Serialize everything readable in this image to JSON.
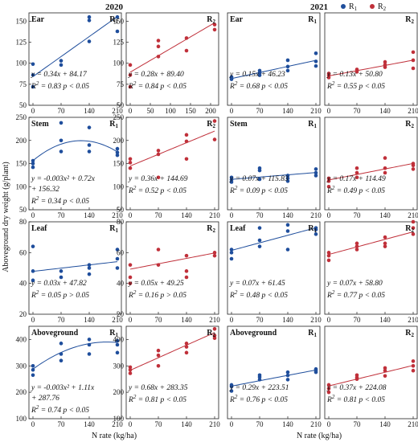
{
  "figure": {
    "years": [
      "2020",
      "2021"
    ],
    "xlabel": "N rate (kg/ha)",
    "ylabel": "Aboveground dry weight  (g/plant)",
    "legend": [
      {
        "label": "R1",
        "color": "#1f4e9c"
      },
      {
        "label": "R2",
        "color": "#c0303a"
      }
    ]
  },
  "chart_data": [
    {
      "type": "scatter",
      "year": "2020",
      "organ": "Ear",
      "tag": "R1",
      "color": "#1f4e9c",
      "xlim": [
        -10,
        220
      ],
      "ylim": [
        50,
        160
      ],
      "yticks": [
        50,
        75,
        100,
        125,
        150
      ],
      "xticks": [
        0,
        70,
        140,
        210
      ],
      "fit": {
        "type": "linear",
        "a": 0.34,
        "b": 84.17
      },
      "eq": "y = 0.34x + 84.17",
      "r2": "R2 = 0.83  p < 0.05",
      "points": [
        [
          0,
          72
        ],
        [
          0,
          86
        ],
        [
          0,
          99
        ],
        [
          70,
          98
        ],
        [
          70,
          103
        ],
        [
          140,
          126
        ],
        [
          140,
          151
        ],
        [
          140,
          155
        ],
        [
          210,
          138
        ],
        [
          210,
          155
        ]
      ]
    },
    {
      "type": "scatter",
      "year": "2020",
      "organ": "Ear",
      "tag": "R2",
      "color": "#c0303a",
      "xlim": [
        -10,
        220
      ],
      "ylim": [
        50,
        160
      ],
      "yticks": [
        50,
        75,
        100,
        125,
        150
      ],
      "xticks": [
        0,
        50,
        100,
        150,
        200
      ],
      "fit": {
        "type": "linear",
        "a": 0.28,
        "b": 89.4
      },
      "eq": "y = 0.28x + 89.40",
      "r2": "R2 = 0.84  p < 0.05",
      "points": [
        [
          0,
          72
        ],
        [
          0,
          86
        ],
        [
          0,
          98
        ],
        [
          70,
          108
        ],
        [
          70,
          120
        ],
        [
          70,
          127
        ],
        [
          140,
          115
        ],
        [
          140,
          130
        ],
        [
          210,
          140
        ],
        [
          210,
          146
        ]
      ]
    },
    {
      "type": "scatter",
      "year": "2021",
      "organ": "Ear",
      "tag": "R1",
      "color": "#1f4e9c",
      "xlim": [
        -10,
        220
      ],
      "ylim": [
        0,
        160
      ],
      "yticks": [],
      "xticks": [
        0,
        70,
        140,
        210
      ],
      "fit": {
        "type": "linear",
        "a": 0.15,
        "b": 46.23
      },
      "eq": "y = 0.15x + 46.23",
      "r2": "R2 = 0.68  p < 0.05",
      "points": [
        [
          0,
          45
        ],
        [
          0,
          47
        ],
        [
          0,
          49
        ],
        [
          70,
          52
        ],
        [
          70,
          56
        ],
        [
          70,
          60
        ],
        [
          140,
          60
        ],
        [
          140,
          67
        ],
        [
          140,
          78
        ],
        [
          210,
          68
        ],
        [
          210,
          76
        ],
        [
          210,
          90
        ]
      ]
    },
    {
      "type": "scatter",
      "year": "2021",
      "organ": "Ear",
      "tag": "R2",
      "color": "#c0303a",
      "xlim": [
        -10,
        220
      ],
      "ylim": [
        0,
        160
      ],
      "yticks": [],
      "xticks": [
        0,
        70,
        140,
        210
      ],
      "fit": {
        "type": "linear",
        "a": 0.13,
        "b": 50.8
      },
      "eq": "y = 0.13x + 50.80",
      "r2": "R2 = 0.55  p < 0.05",
      "points": [
        [
          0,
          48
        ],
        [
          0,
          52
        ],
        [
          0,
          55
        ],
        [
          70,
          58
        ],
        [
          70,
          62
        ],
        [
          140,
          66
        ],
        [
          140,
          70
        ],
        [
          140,
          75
        ],
        [
          210,
          64
        ],
        [
          210,
          78
        ],
        [
          210,
          92
        ]
      ]
    },
    {
      "type": "scatter",
      "year": "2020",
      "organ": "Stem",
      "tag": "R1",
      "color": "#1f4e9c",
      "xlim": [
        -10,
        220
      ],
      "ylim": [
        50,
        250
      ],
      "yticks": [
        50,
        100,
        150,
        200,
        250
      ],
      "xticks": [
        0,
        70,
        140,
        210
      ],
      "fit": {
        "type": "quadratic",
        "a": -0.003,
        "b": 0.72,
        "c": 156.32
      },
      "eq": "y = -0.003x² + 0.72x",
      "eq2": "+ 156.32",
      "r2": "R2 = 0.34  p < 0.05",
      "points": [
        [
          0,
          142
        ],
        [
          0,
          150
        ],
        [
          0,
          156
        ],
        [
          70,
          176
        ],
        [
          70,
          200
        ],
        [
          70,
          238
        ],
        [
          140,
          176
        ],
        [
          140,
          190
        ],
        [
          140,
          228
        ],
        [
          210,
          168
        ],
        [
          210,
          174
        ],
        [
          210,
          182
        ]
      ]
    },
    {
      "type": "scatter",
      "year": "2020",
      "organ": "Stem",
      "tag": "R2",
      "color": "#c0303a",
      "xlim": [
        -10,
        220
      ],
      "ylim": [
        50,
        250
      ],
      "yticks": [
        50,
        100,
        150,
        200,
        250
      ],
      "xticks": [
        0,
        70,
        140,
        210
      ],
      "fit": {
        "type": "linear",
        "a": 0.36,
        "b": 144.69
      },
      "eq": "y = 0.36x + 144.69",
      "r2": "R2 = 0.52  p < 0.05",
      "points": [
        [
          0,
          140
        ],
        [
          0,
          152
        ],
        [
          0,
          160
        ],
        [
          70,
          120
        ],
        [
          70,
          170
        ],
        [
          70,
          178
        ],
        [
          140,
          160
        ],
        [
          140,
          198
        ],
        [
          140,
          212
        ],
        [
          210,
          202
        ],
        [
          210,
          242
        ]
      ]
    },
    {
      "type": "scatter",
      "year": "2021",
      "organ": "Stem",
      "tag": "R1",
      "color": "#1f4e9c",
      "xlim": [
        -10,
        220
      ],
      "ylim": [
        50,
        250
      ],
      "yticks": [],
      "xticks": [
        0,
        70,
        140,
        210
      ],
      "fit": {
        "type": "linear",
        "a": 0.07,
        "b": 115.83
      },
      "eq": "y = 0.07x + 115.83",
      "r2": "R2 = 0.09  p < 0.05",
      "points": [
        [
          0,
          110
        ],
        [
          0,
          115
        ],
        [
          0,
          120
        ],
        [
          70,
          116
        ],
        [
          70,
          135
        ],
        [
          70,
          140
        ],
        [
          140,
          112
        ],
        [
          140,
          118
        ],
        [
          140,
          124
        ],
        [
          210,
          124
        ],
        [
          210,
          130
        ],
        [
          210,
          138
        ]
      ]
    },
    {
      "type": "scatter",
      "year": "2021",
      "organ": "Stem",
      "tag": "R2",
      "color": "#c0303a",
      "xlim": [
        -10,
        220
      ],
      "ylim": [
        50,
        250
      ],
      "yticks": [],
      "xticks": [
        0,
        70,
        140,
        210
      ],
      "fit": {
        "type": "linear",
        "a": 0.17,
        "b": 114.49
      },
      "eq": "y = 0.17x + 114.49",
      "r2": "R2 = 0.49  p < 0.05",
      "points": [
        [
          0,
          100
        ],
        [
          0,
          112
        ],
        [
          0,
          118
        ],
        [
          70,
          120
        ],
        [
          70,
          130
        ],
        [
          70,
          140
        ],
        [
          140,
          130
        ],
        [
          140,
          140
        ],
        [
          140,
          162
        ],
        [
          210,
          138
        ],
        [
          210,
          146
        ],
        [
          210,
          150
        ]
      ]
    },
    {
      "type": "scatter",
      "year": "2020",
      "organ": "Leaf",
      "tag": "R1",
      "color": "#1f4e9c",
      "xlim": [
        -10,
        220
      ],
      "ylim": [
        20,
        80
      ],
      "yticks": [
        20,
        40,
        60,
        80
      ],
      "xticks": [
        0,
        70,
        140,
        210
      ],
      "fit": {
        "type": "linear",
        "a": 0.03,
        "b": 47.82
      },
      "eq": "y = 0.03x + 47.82",
      "r2": "R2 = 0.05  p > 0.05",
      "points": [
        [
          0,
          42
        ],
        [
          0,
          48
        ],
        [
          0,
          64
        ],
        [
          70,
          44
        ],
        [
          70,
          48
        ],
        [
          140,
          46
        ],
        [
          140,
          50
        ],
        [
          140,
          52
        ],
        [
          210,
          50
        ],
        [
          210,
          56
        ],
        [
          210,
          62
        ]
      ]
    },
    {
      "type": "scatter",
      "year": "2020",
      "organ": "Leaf",
      "tag": "R2",
      "color": "#c0303a",
      "xlim": [
        -10,
        220
      ],
      "ylim": [
        20,
        80
      ],
      "yticks": [
        20,
        40,
        60,
        80
      ],
      "xticks": [
        0,
        70,
        140,
        210
      ],
      "fit": {
        "type": "linear",
        "a": 0.05,
        "b": 49.25
      },
      "eq": "y = 0.05x + 49.25",
      "r2": "R2 = 0.16  p > 0.05",
      "points": [
        [
          0,
          40
        ],
        [
          0,
          44
        ],
        [
          0,
          52
        ],
        [
          70,
          52
        ],
        [
          70,
          62
        ],
        [
          140,
          44
        ],
        [
          140,
          48
        ],
        [
          140,
          58
        ],
        [
          210,
          58
        ],
        [
          210,
          60
        ]
      ]
    },
    {
      "type": "scatter",
      "year": "2021",
      "organ": "Leaf",
      "tag": "R1",
      "color": "#1f4e9c",
      "xlim": [
        -10,
        220
      ],
      "ylim": [
        20,
        80
      ],
      "yticks": [],
      "xticks": [
        0,
        70,
        140,
        210
      ],
      "fit": {
        "type": "linear",
        "a": 0.07,
        "b": 61.45
      },
      "eq": "y = 0.07x + 61.45",
      "r2": "R2 = 0.48  p < 0.05",
      "points": [
        [
          0,
          56
        ],
        [
          0,
          60
        ],
        [
          0,
          62
        ],
        [
          70,
          64
        ],
        [
          70,
          68
        ],
        [
          70,
          76
        ],
        [
          140,
          62
        ],
        [
          140,
          74
        ],
        [
          140,
          78
        ],
        [
          210,
          72
        ],
        [
          210,
          75
        ],
        [
          210,
          76
        ]
      ]
    },
    {
      "type": "scatter",
      "year": "2021",
      "organ": "Leaf",
      "tag": "R2",
      "color": "#c0303a",
      "xlim": [
        -10,
        220
      ],
      "ylim": [
        20,
        80
      ],
      "yticks": [],
      "xticks": [
        0,
        70,
        140,
        210
      ],
      "fit": {
        "type": "linear",
        "a": 0.07,
        "b": 58.8
      },
      "eq": "y = 0.07x + 58.80",
      "r2": "R2 = 0.77  p < 0.05",
      "points": [
        [
          0,
          55
        ],
        [
          0,
          58
        ],
        [
          0,
          60
        ],
        [
          70,
          62
        ],
        [
          70,
          64
        ],
        [
          70,
          66
        ],
        [
          140,
          64
        ],
        [
          140,
          66
        ],
        [
          140,
          70
        ],
        [
          210,
          72
        ],
        [
          210,
          76
        ],
        [
          210,
          80
        ]
      ]
    },
    {
      "type": "scatter",
      "year": "2020",
      "organ": "Aboveground",
      "tag": "R1",
      "color": "#1f4e9c",
      "xlim": [
        -10,
        220
      ],
      "ylim": [
        100,
        450
      ],
      "yticks": [
        100,
        200,
        300,
        400
      ],
      "xticks": [
        0,
        70,
        140,
        210
      ],
      "fit": {
        "type": "quadratic",
        "a": -0.003,
        "b": 1.11,
        "c": 287.76
      },
      "eq": "y = -0.003x² + 1.11x",
      "eq2": "+ 287.76",
      "r2": "R2 = 0.74  p < 0.05",
      "points": [
        [
          0,
          265
        ],
        [
          0,
          285
        ],
        [
          0,
          300
        ],
        [
          70,
          320
        ],
        [
          70,
          345
        ],
        [
          70,
          385
        ],
        [
          140,
          345
        ],
        [
          140,
          380
        ],
        [
          140,
          400
        ],
        [
          210,
          350
        ],
        [
          210,
          380
        ],
        [
          210,
          395
        ]
      ]
    },
    {
      "type": "scatter",
      "year": "2020",
      "organ": "Aboveground",
      "tag": "R2",
      "color": "#c0303a",
      "xlim": [
        -10,
        220
      ],
      "ylim": [
        100,
        450
      ],
      "yticks": [
        100,
        200,
        300,
        400
      ],
      "xticks": [
        0,
        70,
        140,
        210
      ],
      "fit": {
        "type": "linear",
        "a": 0.68,
        "b": 283.35
      },
      "eq": "y = 0.68x + 283.35",
      "r2": "R2 = 0.81  p < 0.05",
      "points": [
        [
          0,
          272
        ],
        [
          0,
          285
        ],
        [
          0,
          295
        ],
        [
          70,
          300
        ],
        [
          70,
          340
        ],
        [
          70,
          358
        ],
        [
          140,
          350
        ],
        [
          140,
          372
        ],
        [
          140,
          385
        ],
        [
          210,
          405
        ],
        [
          210,
          415
        ],
        [
          210,
          440
        ]
      ]
    },
    {
      "type": "scatter",
      "year": "2021",
      "organ": "Aboveground",
      "tag": "R1",
      "color": "#1f4e9c",
      "xlim": [
        -10,
        220
      ],
      "ylim": [
        100,
        450
      ],
      "yticks": [],
      "xticks": [
        0,
        70,
        140,
        210
      ],
      "fit": {
        "type": "linear",
        "a": 0.29,
        "b": 223.51
      },
      "eq": "y = 0.29x + 223.51",
      "r2": "R2 = 0.76  p < 0.05",
      "points": [
        [
          0,
          205
        ],
        [
          0,
          222
        ],
        [
          0,
          228
        ],
        [
          70,
          248
        ],
        [
          70,
          258
        ],
        [
          70,
          265
        ],
        [
          140,
          248
        ],
        [
          140,
          264
        ],
        [
          140,
          276
        ],
        [
          210,
          276
        ],
        [
          210,
          282
        ],
        [
          210,
          288
        ]
      ]
    },
    {
      "type": "scatter",
      "year": "2021",
      "organ": "Aboveground",
      "tag": "R2",
      "color": "#c0303a",
      "xlim": [
        -10,
        220
      ],
      "ylim": [
        100,
        450
      ],
      "yticks": [],
      "xticks": [
        0,
        70,
        140,
        210
      ],
      "fit": {
        "type": "linear",
        "a": 0.37,
        "b": 224.08
      },
      "eq": "y = 0.37x + 224.08",
      "r2": "R2 = 0.81  p < 0.05",
      "points": [
        [
          0,
          200
        ],
        [
          0,
          214
        ],
        [
          0,
          228
        ],
        [
          70,
          250
        ],
        [
          70,
          256
        ],
        [
          70,
          265
        ],
        [
          140,
          262
        ],
        [
          140,
          282
        ],
        [
          140,
          292
        ],
        [
          210,
          282
        ],
        [
          210,
          300
        ],
        [
          210,
          318
        ]
      ]
    }
  ]
}
